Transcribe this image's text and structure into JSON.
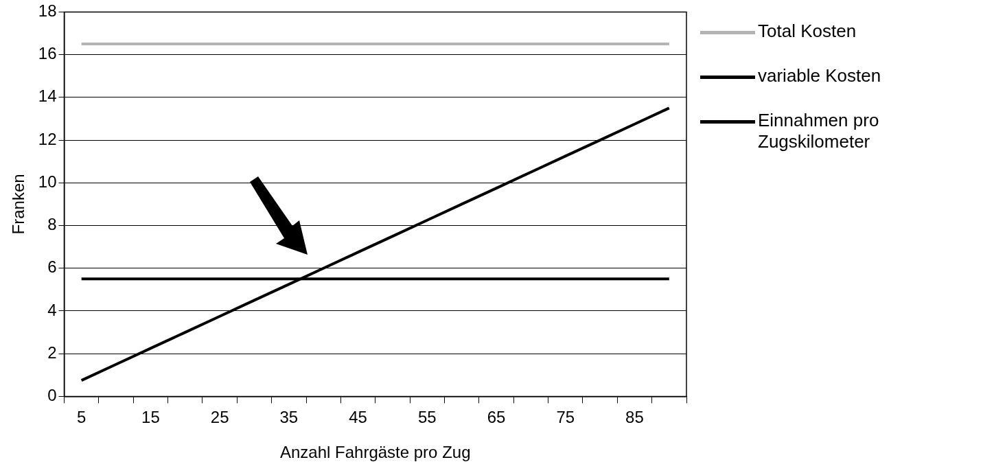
{
  "chart_data": {
    "type": "line",
    "xlabel": "Anzahl Fahrgäste pro Zug",
    "ylabel": "Franken",
    "categories": [
      "5",
      null,
      "15",
      null,
      "25",
      null,
      "35",
      null,
      "45",
      null,
      "55",
      null,
      "65",
      null,
      "75",
      null,
      "85",
      null
    ],
    "series": [
      {
        "name": "Total Kosten",
        "color": "#b3b3b3",
        "values": [
          16.5,
          16.5,
          16.5,
          16.5,
          16.5,
          16.5,
          16.5,
          16.5,
          16.5,
          16.5,
          16.5,
          16.5,
          16.5,
          16.5,
          16.5,
          16.5,
          16.5,
          16.5
        ]
      },
      {
        "name": "variable Kosten",
        "color": "#000000",
        "values": [
          5.5,
          5.5,
          5.5,
          5.5,
          5.5,
          5.5,
          5.5,
          5.5,
          5.5,
          5.5,
          5.5,
          5.5,
          5.5,
          5.5,
          5.5,
          5.5,
          5.5,
          5.5
        ]
      },
      {
        "name": "Einnahmen pro Zugskilometer",
        "color": "#000000",
        "values": [
          0.75,
          1.5,
          2.25,
          3.0,
          3.75,
          4.5,
          5.25,
          6.0,
          6.75,
          7.5,
          8.25,
          9.0,
          9.75,
          10.5,
          11.25,
          12.0,
          12.75,
          13.5
        ]
      }
    ],
    "ylim": [
      0,
      18
    ],
    "yticks": [
      0,
      2,
      4,
      6,
      8,
      10,
      12,
      14,
      16,
      18
    ],
    "grid": "y",
    "legend": "right",
    "marker": "none",
    "line_style": "solid"
  }
}
